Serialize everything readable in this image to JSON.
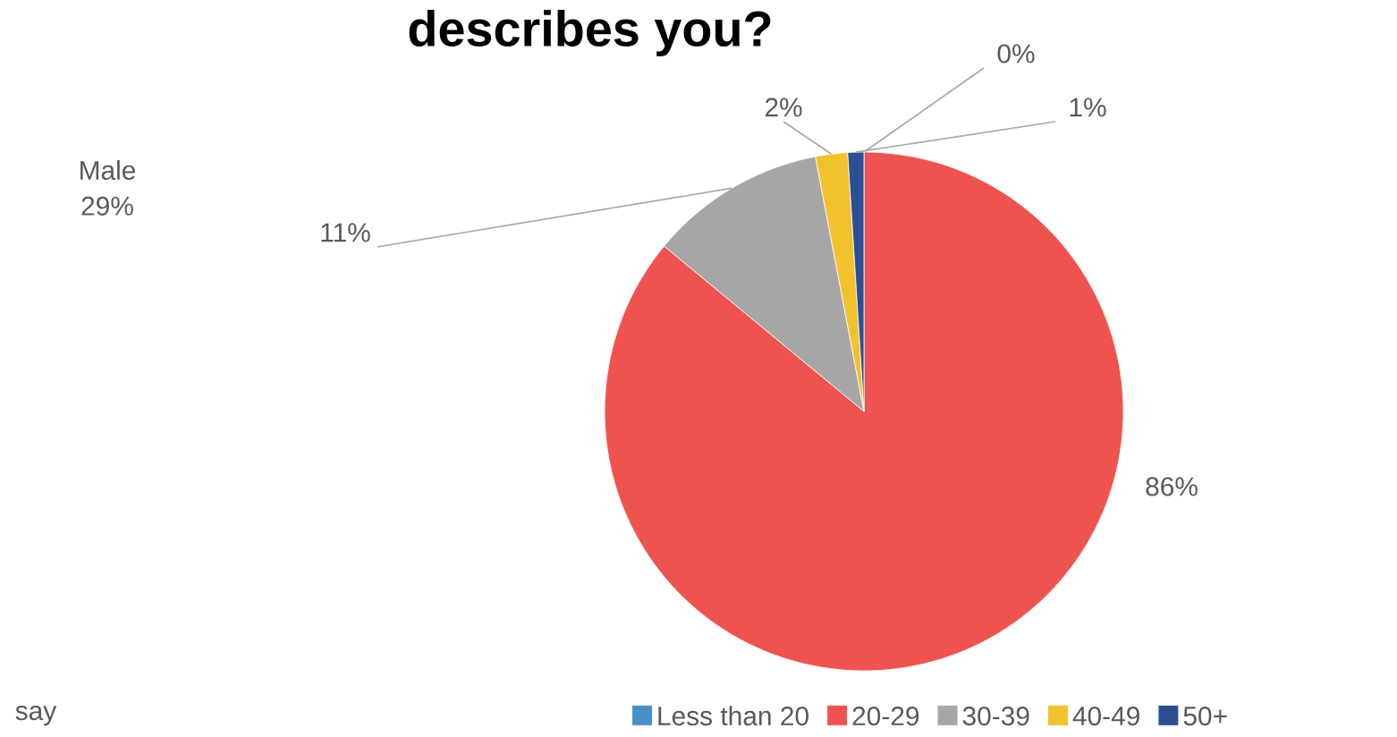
{
  "chart_data": {
    "type": "pie",
    "title": "describes you?",
    "categories": [
      "Less than 20",
      "20-29",
      "30-39",
      "40-49",
      "50+"
    ],
    "values": [
      0,
      86,
      11,
      2,
      1
    ],
    "colors": [
      "#4a90c8",
      "#ef5350",
      "#a6a6a6",
      "#f2c12e",
      "#2c4f94"
    ],
    "value_labels": [
      "0%",
      "86%",
      "11%",
      "2%",
      "1%"
    ],
    "legend": "bottom",
    "annotations": [
      "Male 29%",
      "say"
    ]
  }
}
